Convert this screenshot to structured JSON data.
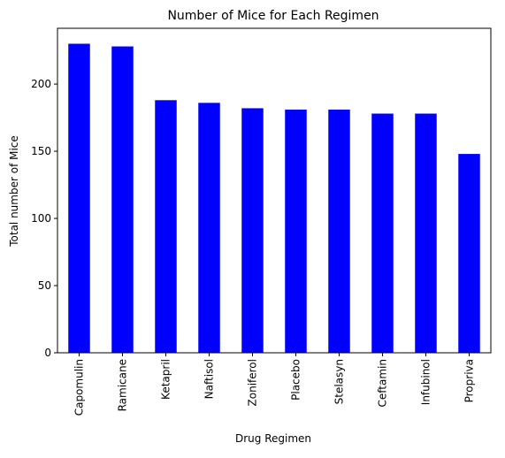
{
  "chart_data": {
    "type": "bar",
    "title": "Number of Mice for Each Regimen",
    "xlabel": "Drug Regimen",
    "ylabel": "Total number of  Mice",
    "categories": [
      "Capomulin",
      "Ramicane",
      "Ketapril",
      "Naftisol",
      "Zoniferol",
      "Placebo",
      "Stelasyn",
      "Ceftamin",
      "Infubinol",
      "Propriva"
    ],
    "values": [
      230,
      228,
      188,
      186,
      182,
      181,
      181,
      178,
      178,
      148
    ],
    "ylim": [
      0,
      241.5
    ],
    "yticks": [
      0,
      50,
      100,
      150,
      200
    ],
    "bar_color": "#0000ff",
    "grid": false,
    "legend": "none"
  }
}
